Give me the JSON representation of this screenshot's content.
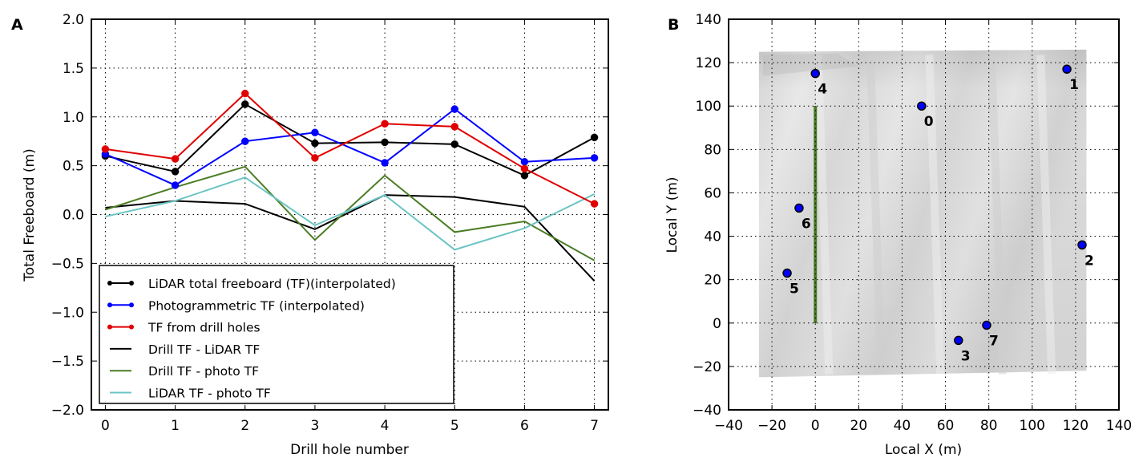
{
  "chart_data": [
    {
      "panel": "A",
      "type": "line",
      "title": "",
      "xlabel": "Drill hole number",
      "ylabel": "Total Freeboard (m)",
      "xlim": [
        -0.2,
        7.2
      ],
      "ylim": [
        -2.0,
        2.0
      ],
      "xticks": [
        0,
        1,
        2,
        3,
        4,
        5,
        6,
        7
      ],
      "xtick_labels": [
        "0",
        "1",
        "2",
        "3",
        "4",
        "5",
        "6",
        "7"
      ],
      "yticks": [
        -2.0,
        -1.5,
        -1.0,
        -0.5,
        0.0,
        0.5,
        1.0,
        1.5,
        2.0
      ],
      "ytick_labels": [
        "−2.0",
        "−1.5",
        "−1.0",
        "−0.5",
        "0.0",
        "0.5",
        "1.0",
        "1.5",
        "2.0"
      ],
      "grid": true,
      "legend_position": "lower-left",
      "x": [
        0,
        1,
        2,
        3,
        4,
        5,
        6,
        7
      ],
      "series": [
        {
          "name": "LiDAR total freeboard (TF)(interpolated)",
          "color": "#000000",
          "markers": true,
          "values": [
            0.6,
            0.44,
            1.13,
            0.73,
            0.74,
            0.72,
            0.4,
            0.79
          ]
        },
        {
          "name": "Photogrammetric TF (interpolated)",
          "color": "#0000ff",
          "markers": true,
          "values": [
            0.62,
            0.3,
            0.75,
            0.84,
            0.53,
            1.08,
            0.54,
            0.58
          ]
        },
        {
          "name": "TF from drill holes",
          "color": "#e00000",
          "markers": true,
          "values": [
            0.67,
            0.57,
            1.24,
            0.58,
            0.93,
            0.9,
            0.47,
            0.11
          ]
        },
        {
          "name": "Drill TF - LiDAR TF",
          "color": "#000000",
          "markers": false,
          "values": [
            0.07,
            0.14,
            0.11,
            -0.15,
            0.2,
            0.18,
            0.08,
            -0.68
          ]
        },
        {
          "name": "Drill TF - photo TF",
          "color": "#4a7d23",
          "markers": false,
          "values": [
            0.05,
            0.28,
            0.49,
            -0.26,
            0.4,
            -0.18,
            -0.07,
            -0.47
          ]
        },
        {
          "name": "LiDAR TF - photo TF",
          "color": "#6cc4c4",
          "markers": false,
          "values": [
            -0.02,
            0.14,
            0.38,
            -0.11,
            0.2,
            -0.36,
            -0.14,
            0.21
          ]
        }
      ]
    },
    {
      "panel": "B",
      "type": "scatter",
      "title": "",
      "xlabel": "Local X (m)",
      "ylabel": "Local Y (m)",
      "xlim": [
        -40,
        140
      ],
      "ylim": [
        -40,
        140
      ],
      "xticks": [
        -40,
        -20,
        0,
        20,
        40,
        60,
        80,
        100,
        120,
        140
      ],
      "xtick_labels": [
        "−40",
        "−20",
        "0",
        "20",
        "40",
        "60",
        "80",
        "100",
        "120",
        "140"
      ],
      "yticks": [
        -40,
        -20,
        0,
        20,
        40,
        60,
        80,
        100,
        120,
        140
      ],
      "ytick_labels": [
        "−40",
        "−20",
        "0",
        "20",
        "40",
        "60",
        "80",
        "100",
        "120",
        "140"
      ],
      "grid": true,
      "background_raster": {
        "description": "grayscale elevation map",
        "x_extent": [
          -26,
          125
        ],
        "y_extent": [
          -25,
          126
        ]
      },
      "transect_line": {
        "color": "#4a7d23",
        "x": [
          0,
          0
        ],
        "y": [
          0,
          100
        ]
      },
      "point_color": "#0000ff",
      "points": [
        {
          "label": "0",
          "x": 49,
          "y": 100
        },
        {
          "label": "1",
          "x": 116,
          "y": 117
        },
        {
          "label": "2",
          "x": 123,
          "y": 36
        },
        {
          "label": "3",
          "x": 66,
          "y": -8
        },
        {
          "label": "4",
          "x": 0,
          "y": 115
        },
        {
          "label": "5",
          "x": -13,
          "y": 23
        },
        {
          "label": "6",
          "x": -7.5,
          "y": 53
        },
        {
          "label": "7",
          "x": 79,
          "y": -1
        }
      ]
    }
  ]
}
